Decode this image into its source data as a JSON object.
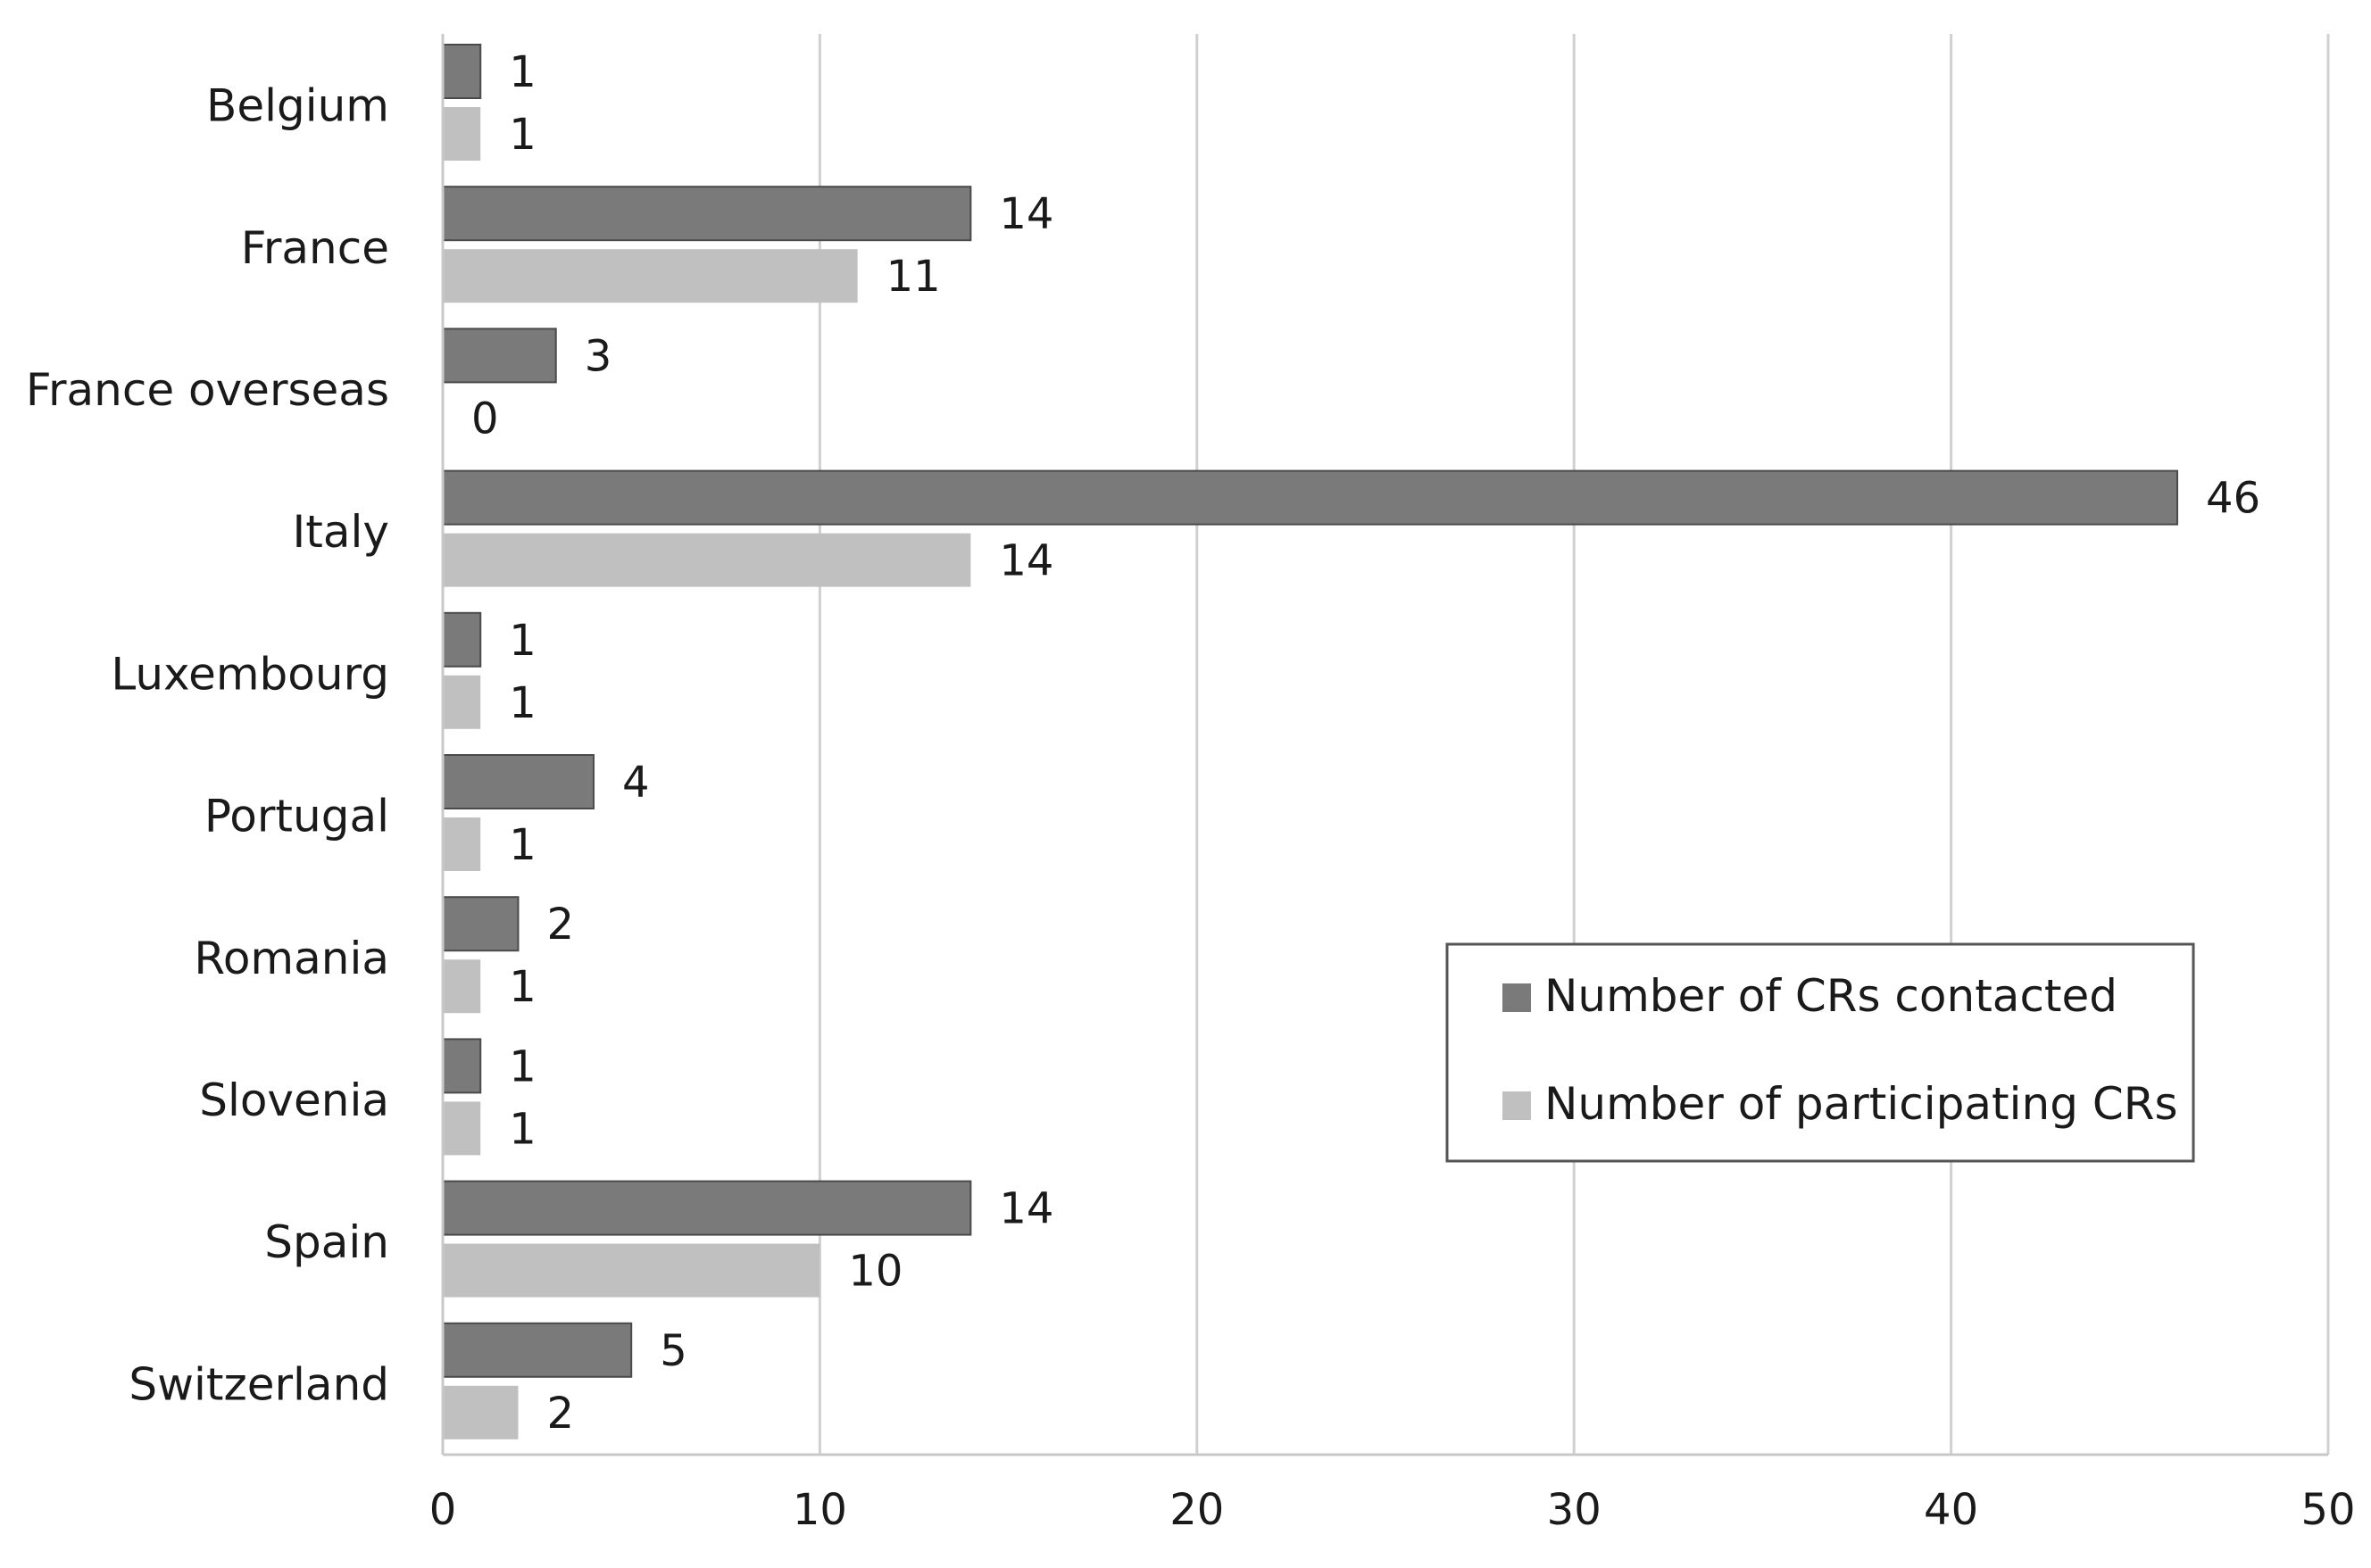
{
  "chart_data": {
    "type": "bar",
    "orientation": "horizontal",
    "categories": [
      "Belgium",
      "France",
      "France overseas",
      "Italy",
      "Luxembourg",
      "Portugal",
      "Romania",
      "Slovenia",
      "Spain",
      "Switzerland"
    ],
    "series": [
      {
        "name": "Number of CRs contacted",
        "values": [
          1,
          14,
          3,
          46,
          1,
          4,
          2,
          1,
          14,
          5
        ],
        "color": "#7a7a7a"
      },
      {
        "name": "Number of participating CRs",
        "values": [
          1,
          11,
          0,
          14,
          1,
          1,
          1,
          1,
          10,
          2
        ],
        "color": "#c0c0c0"
      }
    ],
    "title": "",
    "xlabel": "",
    "ylabel": "",
    "xlim": [
      0,
      50
    ],
    "xticks": [
      0,
      10,
      20,
      30,
      40,
      50
    ],
    "grid": true,
    "legend_position": "lower-right"
  }
}
